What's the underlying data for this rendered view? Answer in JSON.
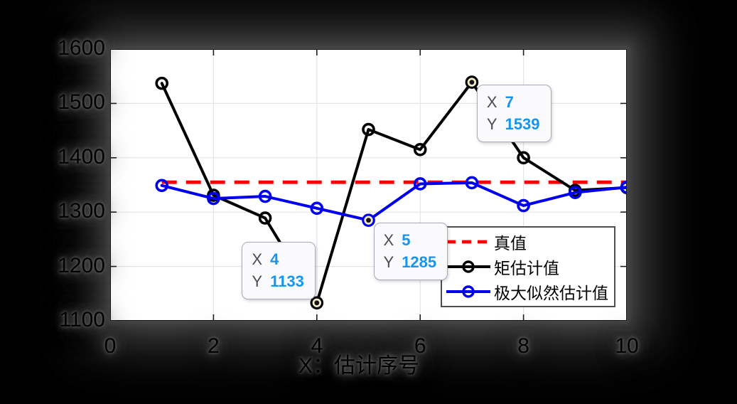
{
  "window": {
    "background": "#000000"
  },
  "figure": {
    "plot_background": "#ffffff",
    "grid_color": "#e4e4e4",
    "axis_color": "#141414",
    "datatip_value_color": "#1496f0",
    "datatip_key_color": "#4d4d4d"
  },
  "chart_data": {
    "type": "line",
    "title": "",
    "xlabel": "X：估计序号",
    "ylabel": "",
    "xlim": [
      0,
      10
    ],
    "ylim": [
      1100,
      1600
    ],
    "x_ticks": [
      0,
      2,
      4,
      6,
      8,
      10
    ],
    "y_ticks": [
      1100,
      1200,
      1300,
      1400,
      1500,
      1600
    ],
    "grid": true,
    "x": [
      1,
      2,
      3,
      4,
      5,
      6,
      7,
      8,
      9,
      10
    ],
    "series": [
      {
        "name": "真值",
        "type": "hline",
        "value": 1355,
        "color": "#ff0000",
        "line_style": "dashed",
        "marker": null
      },
      {
        "name": "矩估计值",
        "type": "line",
        "color": "#000000",
        "line_style": "solid",
        "marker": "o",
        "values": [
          1537,
          1331,
          1289,
          1133,
          1452,
          1415,
          1539,
          1400,
          1340,
          1345
        ]
      },
      {
        "name": "极大似然估计值",
        "type": "line",
        "color": "#0000ee",
        "line_style": "solid",
        "marker": "o",
        "values": [
          1349,
          1325,
          1329,
          1307,
          1285,
          1352,
          1354,
          1312,
          1336,
          1346
        ]
      }
    ],
    "legend": {
      "position": "inside lower right",
      "entries": [
        "真值",
        "矩估计值",
        "极大似然估计值"
      ]
    },
    "datatips": [
      {
        "series": 1,
        "x": 4,
        "y": 1133,
        "x_label": "X",
        "y_label": "Y",
        "placement": "above-left"
      },
      {
        "series": 2,
        "x": 5,
        "y": 1285,
        "x_label": "X",
        "y_label": "Y",
        "placement": "below-right"
      },
      {
        "series": 1,
        "x": 7,
        "y": 1539,
        "x_label": "X",
        "y_label": "Y",
        "placement": "below-right"
      }
    ]
  }
}
